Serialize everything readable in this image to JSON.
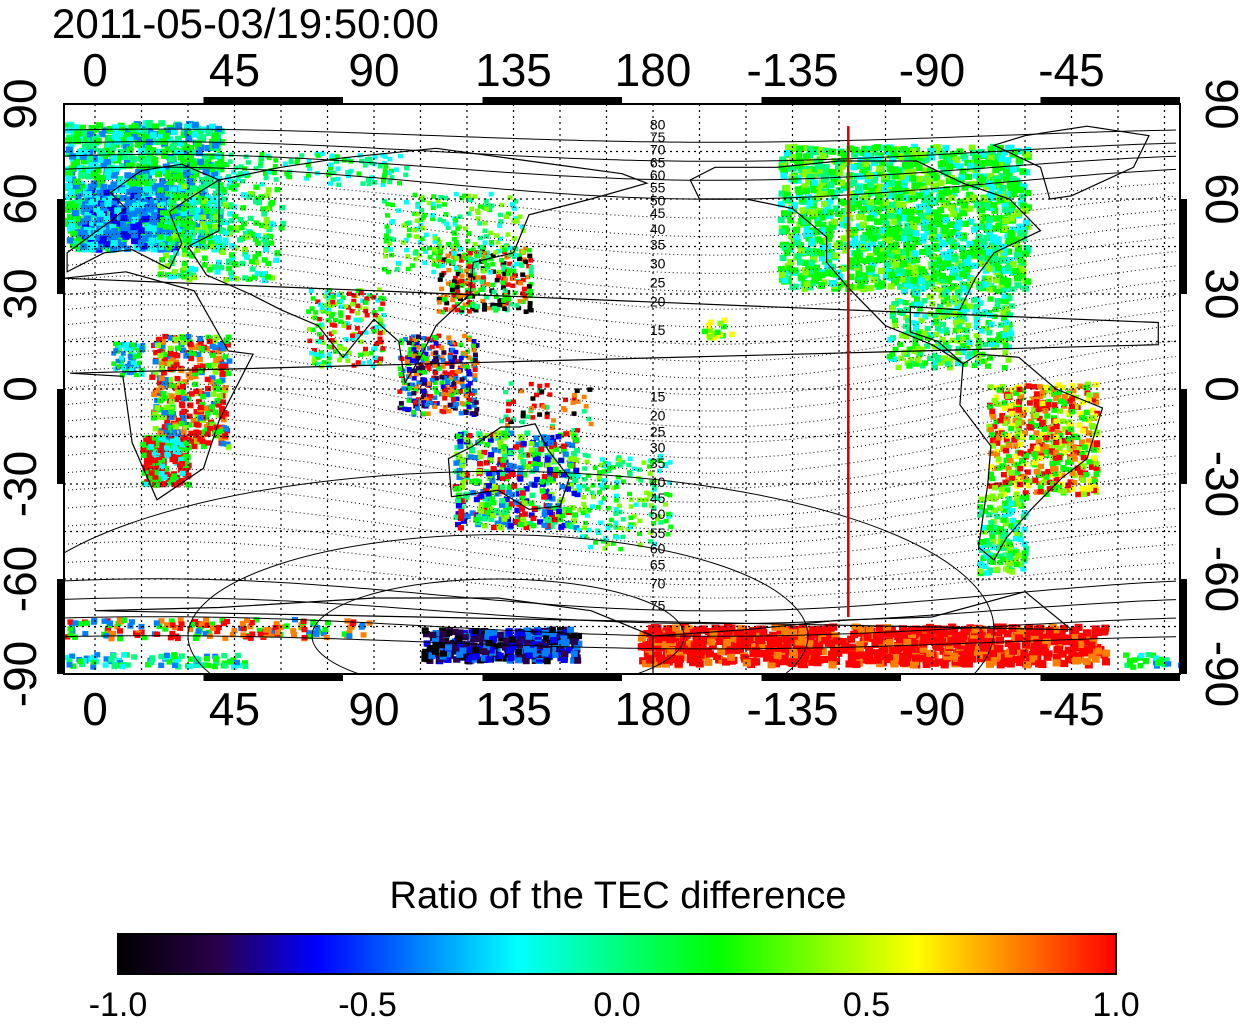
{
  "title": "2011-05-03/19:50:00",
  "map": {
    "top_axis_labels": [
      "0",
      "45",
      "90",
      "135",
      "180",
      "-135",
      "-90",
      "-45"
    ],
    "bottom_axis_labels": [
      "0",
      "45",
      "90",
      "135",
      "180",
      "-135",
      "-90",
      "-45"
    ],
    "left_axis_labels": [
      "90",
      "60",
      "30",
      "0",
      "-30",
      "-60",
      "-90"
    ],
    "right_axis_labels": [
      "90",
      "60",
      "30",
      "0",
      "-30",
      "-60",
      "-90"
    ],
    "contour_labels_north": [
      "80",
      "75",
      "70",
      "65",
      "60",
      "55",
      "50",
      "45",
      "40",
      "35",
      "30",
      "25",
      "20",
      "15"
    ],
    "contour_labels_south": [
      "15",
      "20",
      "25",
      "30",
      "35",
      "40",
      "45",
      "50",
      "55",
      "60",
      "65",
      "70",
      "75"
    ],
    "terminator_longitude": -117,
    "terminator_color": "#d40000"
  },
  "colorbar": {
    "title": "Ratio of the TEC difference",
    "labels": [
      "-1.0",
      "-0.5",
      "0.0",
      "0.5",
      "1.0"
    ],
    "range": [
      -1.0,
      1.0
    ],
    "colors": [
      "#000000",
      "#2a004a",
      "#0000ff",
      "#0080ff",
      "#00ffff",
      "#00ff80",
      "#00ff00",
      "#80ff00",
      "#ffff00",
      "#ff8000",
      "#ff0000"
    ]
  }
}
